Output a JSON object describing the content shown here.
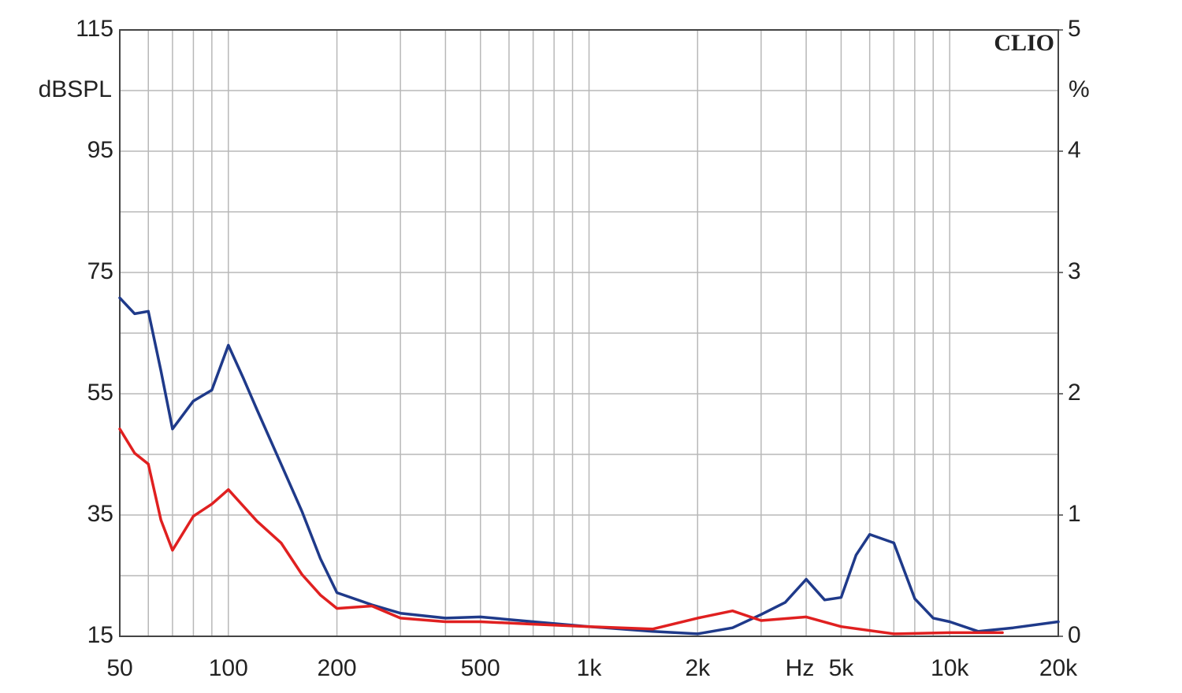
{
  "chart_data": {
    "type": "line",
    "watermark": "CLIO",
    "ylabel": "dBSPL",
    "y2label": "%",
    "xlabel": "Hz",
    "xscale": "log",
    "xlim": [
      50,
      20000
    ],
    "xticks": [
      50,
      100,
      200,
      500,
      {
        "value": 1000,
        "label": "1k"
      },
      {
        "value": 2000,
        "label": "2k"
      },
      {
        "value": 5000,
        "label": "5k"
      },
      {
        "value": 10000,
        "label": "10k"
      },
      {
        "value": 20000,
        "label": "20k"
      }
    ],
    "xminor_ticks": [
      60,
      70,
      80,
      90,
      300,
      400,
      600,
      700,
      800,
      900,
      3000,
      4000,
      6000,
      7000,
      8000,
      9000
    ],
    "ylim": [
      15,
      115
    ],
    "yticks": [
      15,
      35,
      55,
      75,
      95,
      115
    ],
    "yminor_ticks": [
      25,
      45,
      65,
      85,
      105
    ],
    "y2lim": [
      0,
      5
    ],
    "y2ticks": [
      0,
      1,
      2,
      3,
      4,
      5
    ],
    "grid": true,
    "series": [
      {
        "color": "#1f3a8a",
        "axis": "y2",
        "x": [
          50,
          55,
          60,
          65,
          70,
          80,
          90,
          100,
          110,
          120,
          140,
          160,
          180,
          200,
          250,
          300,
          400,
          500,
          700,
          1000,
          1500,
          2000,
          2500,
          3000,
          3500,
          4000,
          4500,
          5000,
          5500,
          6000,
          7000,
          8000,
          9000,
          10000,
          12000,
          15000,
          20000
        ],
        "values": [
          2.79,
          2.66,
          2.68,
          2.19,
          1.71,
          1.94,
          2.03,
          2.4,
          2.13,
          1.87,
          1.42,
          1.03,
          0.64,
          0.36,
          0.26,
          0.19,
          0.15,
          0.16,
          0.12,
          0.08,
          0.04,
          0.02,
          0.07,
          0.18,
          0.28,
          0.47,
          0.3,
          0.32,
          0.67,
          0.84,
          0.77,
          0.31,
          0.15,
          0.12,
          0.04,
          0.07,
          0.12
        ]
      },
      {
        "color": "#e02020",
        "axis": "y2",
        "x": [
          50,
          55,
          60,
          65,
          70,
          80,
          90,
          100,
          120,
          140,
          160,
          180,
          200,
          250,
          300,
          400,
          500,
          700,
          1000,
          1500,
          2000,
          2500,
          3000,
          4000,
          5000,
          7000,
          10000,
          14000
        ],
        "values": [
          1.71,
          1.51,
          1.42,
          0.96,
          0.71,
          0.99,
          1.09,
          1.21,
          0.95,
          0.77,
          0.51,
          0.34,
          0.23,
          0.25,
          0.15,
          0.12,
          0.12,
          0.1,
          0.08,
          0.06,
          0.15,
          0.21,
          0.13,
          0.16,
          0.08,
          0.02,
          0.03,
          0.03
        ]
      }
    ]
  }
}
